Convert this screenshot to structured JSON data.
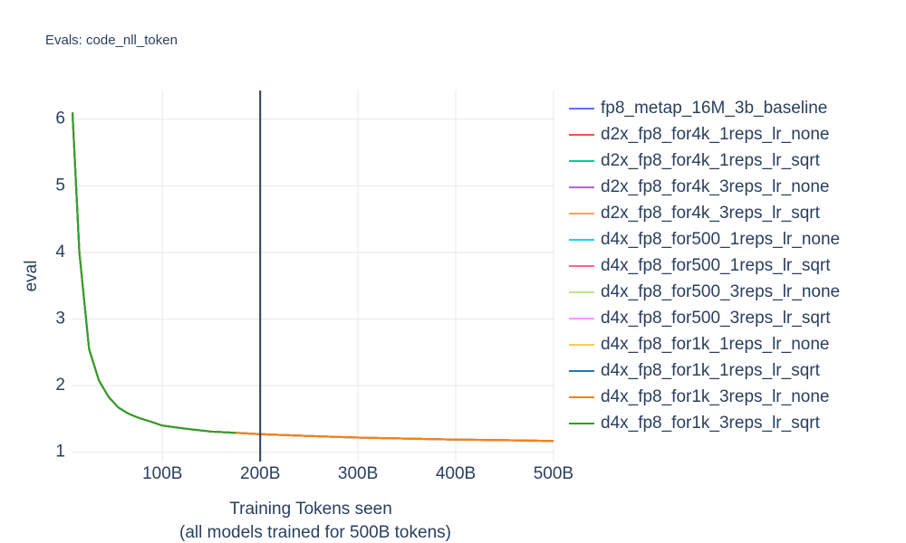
{
  "chart_data": {
    "type": "line",
    "title": "Evals: code_nll_token",
    "x_label": [
      "Training Tokens seen",
      "(all models trained for 500B tokens)"
    ],
    "y_label": "eval",
    "x": [
      8,
      15,
      25,
      35,
      45,
      55,
      65,
      75,
      90,
      100,
      125,
      150,
      175,
      200,
      250,
      300,
      350,
      400,
      450,
      500
    ],
    "xlim": [
      8,
      501
    ],
    "ylim": [
      0.86,
      6.43
    ],
    "xticks": [
      {
        "value": 100,
        "label": "100B"
      },
      {
        "value": 200,
        "label": "200B"
      },
      {
        "value": 300,
        "label": "300B"
      },
      {
        "value": 400,
        "label": "400B"
      },
      {
        "value": 500,
        "label": "500B"
      }
    ],
    "yticks": [
      1,
      2,
      3,
      4,
      5,
      6
    ],
    "grid": true,
    "vline": 200,
    "series": [
      {
        "name": "fp8_metap_16M_3b_baseline",
        "color": "#636efa",
        "values": [
          6.1,
          4.0,
          2.55,
          2.08,
          1.83,
          1.67,
          1.58,
          1.52,
          1.45,
          1.4,
          1.35,
          1.31,
          1.29,
          1.27,
          1.245,
          1.22,
          1.205,
          1.19,
          1.18,
          1.17
        ]
      },
      {
        "name": "d2x_fp8_for4k_1reps_lr_none",
        "color": "#ef553b",
        "values": [
          6.1,
          4.0,
          2.55,
          2.08,
          1.83,
          1.67,
          1.58,
          1.52,
          1.45,
          1.4,
          1.35,
          1.31,
          1.29,
          1.27,
          1.245,
          1.22,
          1.205,
          1.19,
          1.18,
          1.17
        ]
      },
      {
        "name": "d2x_fp8_for4k_1reps_lr_sqrt",
        "color": "#00cc96",
        "values": [
          6.1,
          4.0,
          2.55,
          2.08,
          1.83,
          1.67,
          1.58,
          1.52,
          1.45,
          1.4,
          1.35,
          1.31,
          1.29,
          1.27,
          1.245,
          1.22,
          1.205,
          1.19,
          1.18,
          1.17
        ]
      },
      {
        "name": "d2x_fp8_for4k_3reps_lr_none",
        "color": "#ab63fa",
        "values": [
          6.1,
          4.0,
          2.55,
          2.08,
          1.83,
          1.67,
          1.58,
          1.52,
          1.45,
          1.4,
          1.35,
          1.31,
          1.29,
          1.27,
          1.245,
          1.22,
          1.205,
          1.19,
          1.18,
          1.17
        ]
      },
      {
        "name": "d2x_fp8_for4k_3reps_lr_sqrt",
        "color": "#ffa15a",
        "values": [
          6.1,
          4.0,
          2.55,
          2.08,
          1.83,
          1.67,
          1.58,
          1.52,
          1.45,
          1.4,
          1.35,
          1.31,
          1.29,
          1.27,
          1.245,
          1.22,
          1.205,
          1.19,
          1.18,
          1.17
        ]
      },
      {
        "name": "d4x_fp8_for500_1reps_lr_none",
        "color": "#19d3f3",
        "values": [
          6.1,
          4.0,
          2.55,
          2.08,
          1.83,
          1.67,
          1.58,
          1.52,
          1.45,
          1.4,
          1.35,
          1.31,
          1.29,
          1.27,
          1.245,
          1.22,
          1.205,
          1.19,
          1.18,
          1.17
        ]
      },
      {
        "name": "d4x_fp8_for500_1reps_lr_sqrt",
        "color": "#ff6692",
        "values": [
          6.1,
          4.0,
          2.55,
          2.08,
          1.83,
          1.67,
          1.58,
          1.52,
          1.45,
          1.4,
          1.35,
          1.31,
          1.29,
          1.27,
          1.245,
          1.22,
          1.205,
          1.19,
          1.18,
          1.17
        ]
      },
      {
        "name": "d4x_fp8_for500_3reps_lr_none",
        "color": "#b6e880",
        "values": [
          6.1,
          4.0,
          2.55,
          2.08,
          1.83,
          1.67,
          1.58,
          1.52,
          1.45,
          1.4,
          1.35,
          1.31,
          1.29,
          1.27,
          1.245,
          1.22,
          1.205,
          1.19,
          1.18,
          1.17
        ]
      },
      {
        "name": "d4x_fp8_for500_3reps_lr_sqrt",
        "color": "#ff97ff",
        "values": [
          6.1,
          4.0,
          2.55,
          2.08,
          1.83,
          1.67,
          1.58,
          1.52,
          1.45,
          1.4,
          1.35,
          1.31,
          1.29,
          1.27,
          1.245,
          1.22,
          1.205,
          1.19,
          1.18,
          1.17
        ]
      },
      {
        "name": "d4x_fp8_for1k_1reps_lr_none",
        "color": "#fecb52",
        "values": [
          6.1,
          4.0,
          2.55,
          2.08,
          1.83,
          1.67,
          1.58,
          1.52,
          1.45,
          1.4,
          1.35,
          1.31,
          1.29,
          1.27,
          1.245,
          1.22,
          1.205,
          1.19,
          1.18,
          1.17
        ]
      },
      {
        "name": "d4x_fp8_for1k_1reps_lr_sqrt",
        "color": "#1f77b4",
        "values": [
          6.1,
          4.0,
          2.55,
          2.08,
          1.83,
          1.67,
          1.58,
          1.52,
          1.45,
          1.4,
          1.35,
          1.31,
          1.29,
          1.27,
          1.245,
          1.22,
          1.205,
          1.19,
          1.18,
          1.17
        ]
      },
      {
        "name": "d4x_fp8_for1k_3reps_lr_none",
        "color": "#ff7f0e",
        "values": [
          6.1,
          4.0,
          2.55,
          2.08,
          1.83,
          1.67,
          1.58,
          1.52,
          1.45,
          1.4,
          1.35,
          1.31,
          1.29,
          1.27,
          1.245,
          1.22,
          1.205,
          1.19,
          1.18,
          1.17
        ]
      },
      {
        "name": "d4x_fp8_for1k_3reps_lr_sqrt",
        "color": "#2ca02c",
        "values": [
          6.1,
          4.0,
          2.55,
          2.08,
          1.83,
          1.67,
          1.58,
          1.52,
          1.45,
          1.4,
          1.35,
          1.31,
          1.29,
          null,
          null,
          null,
          null,
          null,
          null,
          null
        ]
      }
    ]
  }
}
